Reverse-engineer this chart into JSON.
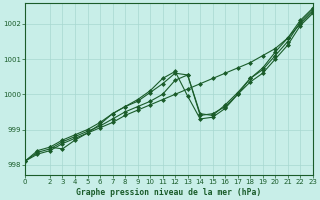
{
  "title": "Graphe pression niveau de la mer (hPa)",
  "background_color": "#c8eee8",
  "line_color": "#1a5c2a",
  "grid_color": "#a8d8d0",
  "xlim": [
    0,
    23
  ],
  "ylim": [
    997.7,
    1002.6
  ],
  "yticks": [
    998,
    999,
    1000,
    1001,
    1002
  ],
  "xticks": [
    0,
    2,
    3,
    4,
    5,
    6,
    7,
    8,
    9,
    10,
    11,
    12,
    13,
    14,
    15,
    16,
    17,
    18,
    19,
    20,
    21,
    22,
    23
  ],
  "series": [
    {
      "x": [
        0,
        1,
        2,
        3,
        4,
        5,
        6,
        7,
        8,
        9,
        10,
        11,
        12,
        13,
        14,
        15,
        16,
        17,
        18,
        19,
        20,
        21,
        22,
        23
      ],
      "y": [
        998.1,
        998.3,
        998.4,
        998.6,
        998.75,
        998.9,
        999.05,
        999.2,
        999.4,
        999.55,
        999.7,
        999.85,
        1000.0,
        1000.15,
        1000.3,
        1000.45,
        1000.6,
        1000.75,
        1000.9,
        1001.1,
        1001.3,
        1001.6,
        1002.0,
        1002.35
      ]
    },
    {
      "x": [
        0,
        1,
        2,
        3,
        4,
        5,
        6,
        7,
        8,
        9,
        10,
        11,
        12,
        13,
        14,
        15,
        16,
        17,
        18,
        19,
        20,
        21,
        22,
        23
      ],
      "y": [
        998.1,
        998.35,
        998.45,
        998.65,
        998.8,
        998.95,
        999.1,
        999.3,
        999.5,
        999.65,
        999.8,
        1000.0,
        1000.4,
        1000.55,
        999.4,
        999.45,
        999.65,
        1000.0,
        1000.35,
        1000.6,
        1001.0,
        1001.4,
        1001.95,
        1002.3
      ]
    },
    {
      "x": [
        0,
        1,
        2,
        3,
        4,
        5,
        6,
        7,
        8,
        9,
        10,
        11,
        12,
        13,
        14,
        15,
        16,
        17,
        18,
        19,
        20,
        21,
        22,
        23
      ],
      "y": [
        998.1,
        998.4,
        998.5,
        998.7,
        998.85,
        999.0,
        999.2,
        999.45,
        999.65,
        999.8,
        1000.05,
        1000.3,
        1000.6,
        1000.55,
        999.45,
        999.4,
        999.7,
        1000.05,
        1000.45,
        1000.7,
        1001.1,
        1001.5,
        1002.05,
        1002.4
      ]
    },
    {
      "x": [
        2,
        3,
        4,
        5,
        6,
        7,
        8,
        9,
        10,
        11,
        12,
        13,
        14,
        15,
        16,
        17,
        18,
        19,
        20,
        21,
        22,
        23
      ],
      "y": [
        998.5,
        998.45,
        998.7,
        998.9,
        999.15,
        999.45,
        999.65,
        999.85,
        1000.1,
        1000.45,
        1000.65,
        999.95,
        999.3,
        999.35,
        999.6,
        1000.0,
        1000.45,
        1000.75,
        1001.2,
        1001.6,
        1002.1,
        1002.45
      ]
    }
  ]
}
